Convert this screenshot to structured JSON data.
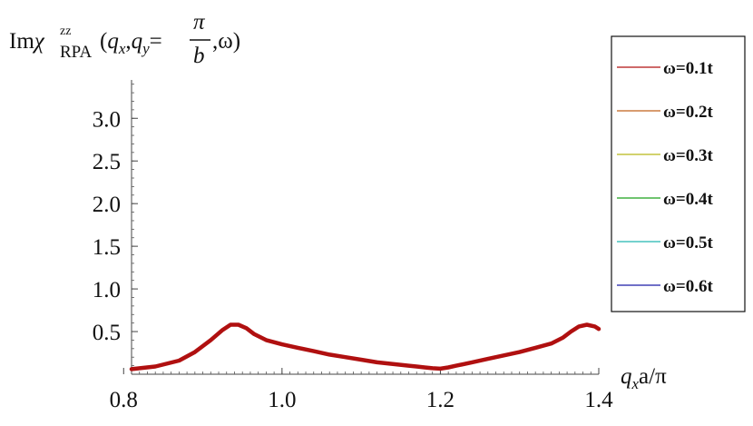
{
  "chart_data": {
    "type": "line",
    "title": "",
    "ylabel": {
      "prefix": "Im",
      "chi": "χ",
      "sup": "zz",
      "sub": "RPA",
      "args_pre": "(",
      "qx_q": "q",
      "qx_sub": "x",
      "sep": ",",
      "qy_q": "q",
      "qy_sub": "y",
      "eq": "=",
      "frac_num": "π",
      "frac_den": "b",
      "args_post": ",ω)"
    },
    "xlabel": {
      "q": "q",
      "sub": "x",
      "rest": "a/π"
    },
    "xlim": [
      0.81,
      1.4
    ],
    "ylim": [
      0.0,
      3.45
    ],
    "xticks": [
      "0.8",
      "1.0",
      "1.2",
      "1.4"
    ],
    "xtick_values": [
      0.8,
      1.0,
      1.2,
      1.4
    ],
    "yticks": [
      "0.5",
      "1.0",
      "1.5",
      "2.0",
      "2.5",
      "3.0"
    ],
    "ytick_values": [
      0.5,
      1.0,
      1.5,
      2.0,
      2.5,
      3.0
    ],
    "grid": false,
    "legend_position": "right",
    "series": [
      {
        "name": "ω=0.1t",
        "color": "#b01010",
        "points": [
          [
            0.81,
            0.06
          ],
          [
            0.84,
            0.09
          ],
          [
            0.87,
            0.16
          ],
          [
            0.89,
            0.26
          ],
          [
            0.91,
            0.4
          ],
          [
            0.925,
            0.52
          ],
          [
            0.935,
            0.58
          ],
          [
            0.945,
            0.58
          ],
          [
            0.955,
            0.54
          ],
          [
            0.965,
            0.47
          ],
          [
            0.98,
            0.4
          ],
          [
            1.0,
            0.35
          ],
          [
            1.02,
            0.31
          ],
          [
            1.04,
            0.27
          ],
          [
            1.06,
            0.23
          ],
          [
            1.08,
            0.2
          ],
          [
            1.1,
            0.17
          ],
          [
            1.12,
            0.14
          ],
          [
            1.14,
            0.12
          ],
          [
            1.16,
            0.1
          ],
          [
            1.17,
            0.09
          ],
          [
            1.18,
            0.08
          ],
          [
            1.19,
            0.07
          ],
          [
            1.2,
            0.065
          ],
          [
            1.21,
            0.08
          ],
          [
            1.22,
            0.1
          ],
          [
            1.24,
            0.14
          ],
          [
            1.26,
            0.18
          ],
          [
            1.28,
            0.22
          ],
          [
            1.3,
            0.26
          ],
          [
            1.32,
            0.31
          ],
          [
            1.34,
            0.36
          ],
          [
            1.355,
            0.43
          ],
          [
            1.365,
            0.5
          ],
          [
            1.375,
            0.56
          ],
          [
            1.385,
            0.58
          ],
          [
            1.395,
            0.56
          ],
          [
            1.4,
            0.53
          ]
        ]
      }
    ]
  },
  "legend": [
    {
      "label": "ω=0.1t",
      "color": "#b01010"
    },
    {
      "label": "ω=0.2t",
      "color": "#c0601a"
    },
    {
      "label": "ω=0.3t",
      "color": "#b8b818"
    },
    {
      "label": "ω=0.4t",
      "color": "#1aa01a"
    },
    {
      "label": "ω=0.5t",
      "color": "#20b8b0"
    },
    {
      "label": "ω=0.6t",
      "color": "#1a1aa8"
    }
  ]
}
